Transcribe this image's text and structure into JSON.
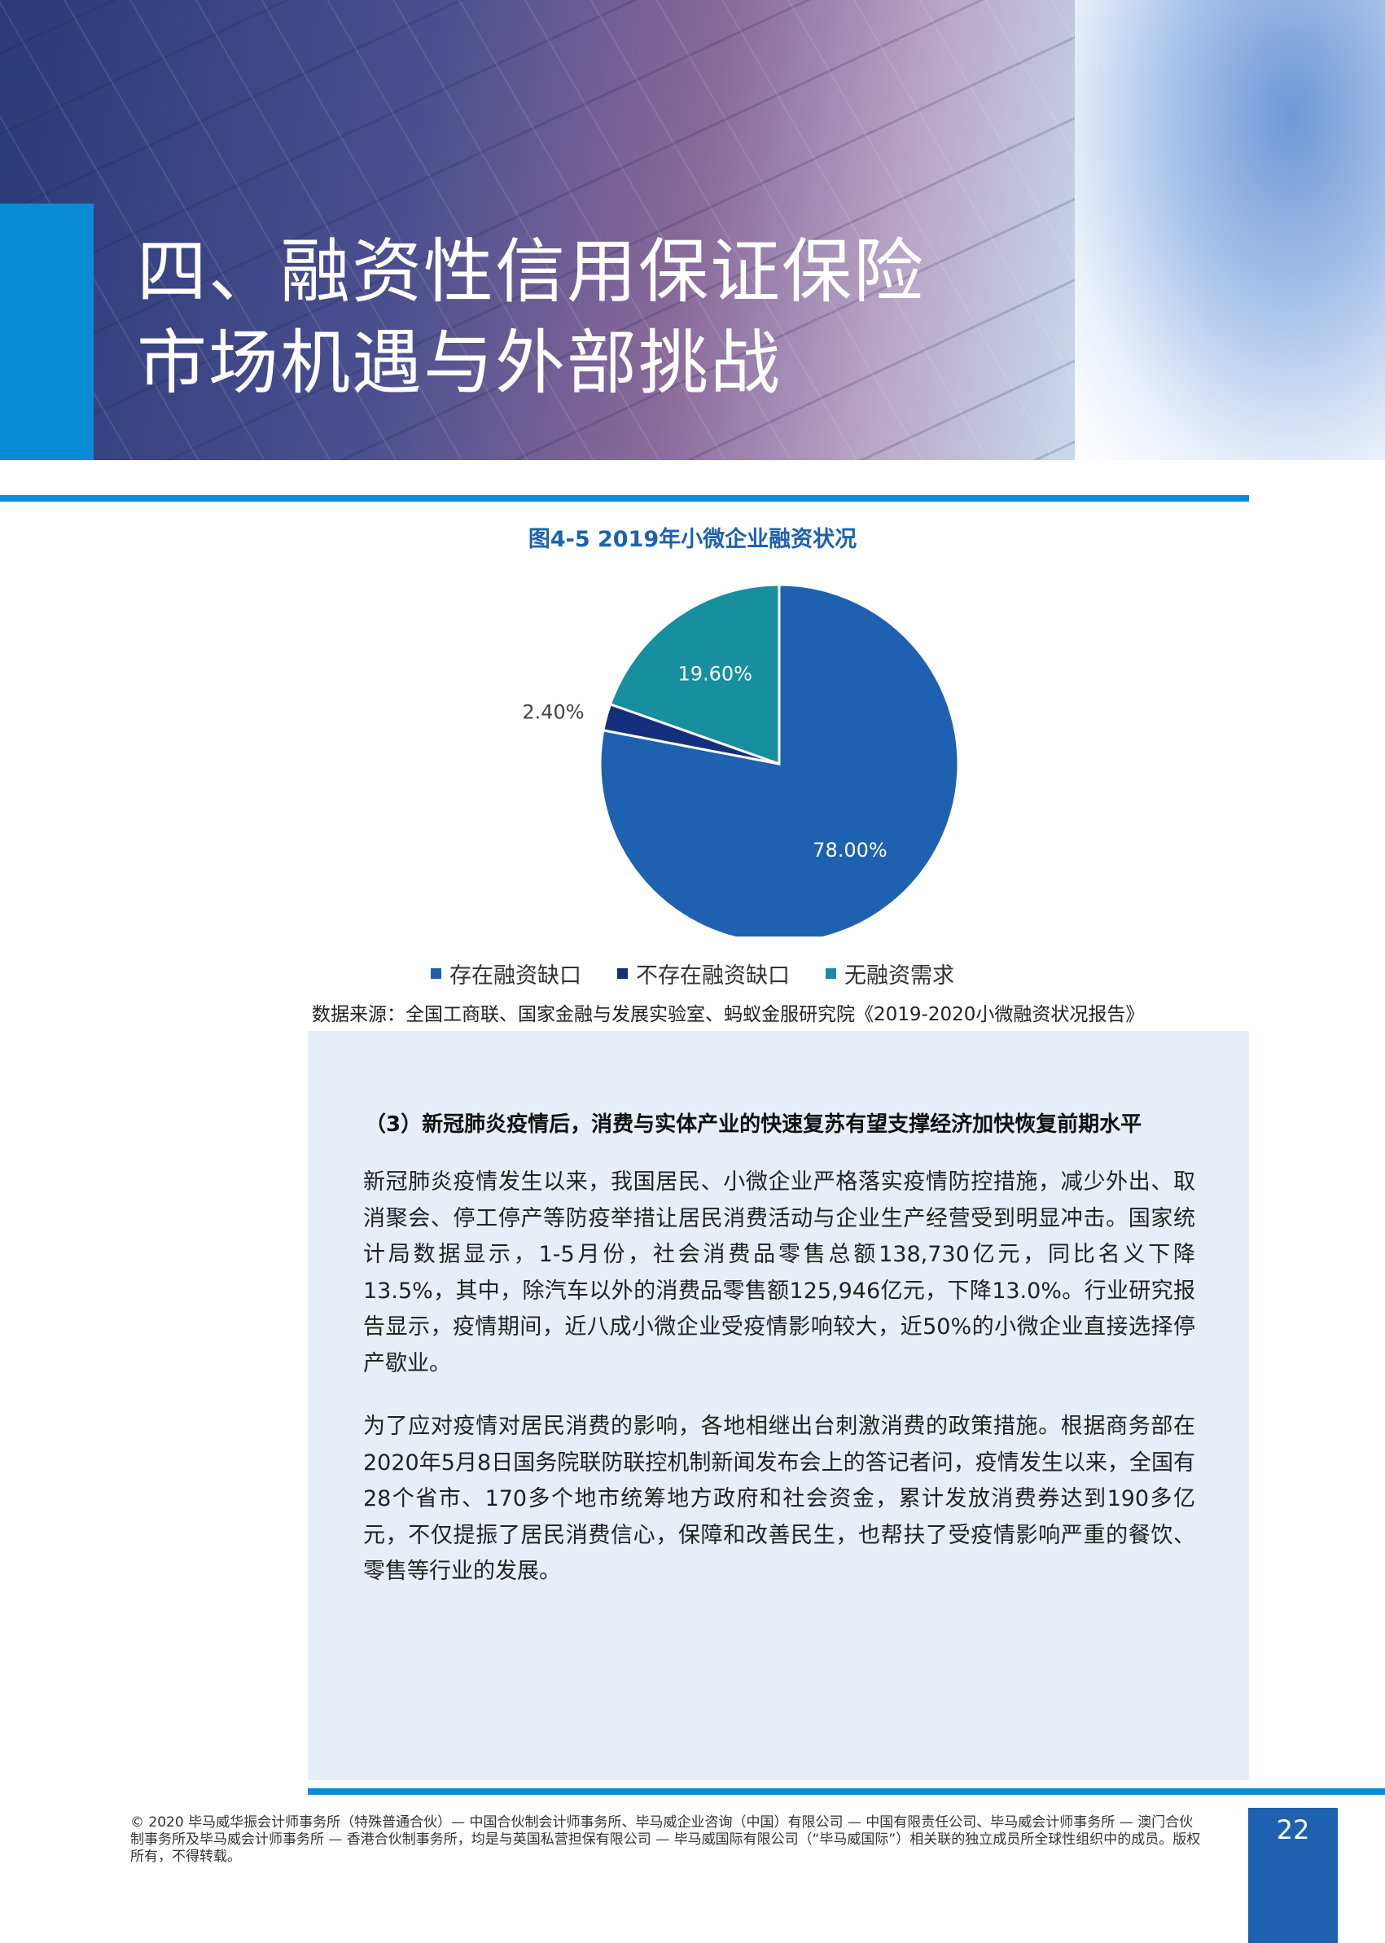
{
  "header": {
    "title_line1": "四、融资性信用保证保险",
    "title_line2": "市场机遇与外部挑战"
  },
  "chart": {
    "caption": "图4-5 2019年小微企业融资状况",
    "source": "数据来源：全国工商联、国家金融与发展实验室、蚂蚁金服研究院《2019-2020小微融资状况报告》"
  },
  "chart_data": {
    "type": "pie",
    "title": "图4-5 2019年小微企业融资状况",
    "categories": [
      "存在融资缺口",
      "不存在融资缺口",
      "无融资需求"
    ],
    "values": [
      78.0,
      2.4,
      19.6
    ],
    "labels": [
      "78.00%",
      "2.40%",
      "19.60%"
    ],
    "colors": [
      "#1e61b0",
      "#14307c",
      "#178f9e"
    ],
    "legend_position": "bottom"
  },
  "section": {
    "heading": "（3）新冠肺炎疫情后，消费与实体产业的快速复苏有望支撑经济加快恢复前期水平",
    "para1": "新冠肺炎疫情发生以来，我国居民、小微企业严格落实疫情防控措施，减少外出、取消聚会、停工停产等防疫举措让居民消费活动与企业生产经营受到明显冲击。国家统计局数据显示，1-5月份，社会消费品零售总额138,730亿元，同比名义下降13.5%，其中，除汽车以外的消费品零售额125,946亿元，下降13.0%。行业研究报告显示，疫情期间，近八成小微企业受疫情影响较大，近50%的小微企业直接选择停产歇业。",
    "para2": "为了应对疫情对居民消费的影响，各地相继出台刺激消费的政策措施。根据商务部在2020年5月8日国务院联防联控机制新闻发布会上的答记者问，疫情发生以来，全国有28个省市、170多个地市统筹地方政府和社会资金，累计发放消费券达到190多亿元，不仅提振了居民消费信心，保障和改善民生，也帮扶了受疫情影响严重的餐饮、零售等行业的发展。"
  },
  "footer": {
    "copyright": "© 2020 毕马威华振会计师事务所（特殊普通合伙）— 中国合伙制会计师事务所、毕马威企业咨询（中国）有限公司 — 中国有限责任公司、毕马威会计师事务所 — 澳门合伙制事务所及毕马威会计师事务所 — 香港合伙制事务所，均是与英国私营担保有限公司 — 毕马威国际有限公司（“毕马威国际”）相关联的独立成员所全球性组织中的成员。版权所有，不得转载。",
    "page_number": "22"
  }
}
